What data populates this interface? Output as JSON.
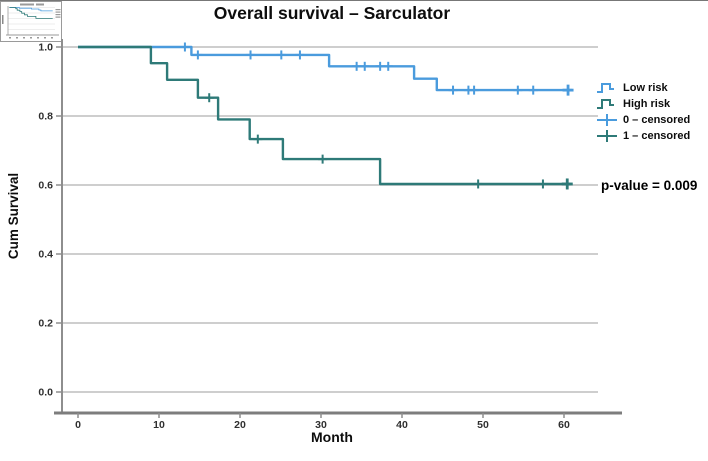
{
  "title": "Overall survival – Sarculator",
  "p_value_label": "p-value = 0.009",
  "axes": {
    "x_label": "Month",
    "y_label": "Cum Survival"
  },
  "legend": {
    "items": [
      {
        "label": "Low risk",
        "type": "step-line",
        "color": "#4a9bdd"
      },
      {
        "label": "High risk",
        "type": "step-line",
        "color": "#2e7a78"
      },
      {
        "label": "0 – censored",
        "type": "censor-plus",
        "color": "#4a9bdd"
      },
      {
        "label": "1 – censored",
        "type": "censor-plus",
        "color": "#2e7a78"
      }
    ]
  },
  "chart_data": {
    "type": "line",
    "subtype": "kaplan-meier-step",
    "title": "Overall survival – Sarculator",
    "xlabel": "Month",
    "ylabel": "Cum Survival",
    "xlim": [
      -2,
      64
    ],
    "ylim": [
      0,
      1.0
    ],
    "xticks": [
      0,
      10,
      20,
      30,
      40,
      50,
      60
    ],
    "yticks": [
      0.0,
      0.2,
      0.4,
      0.6,
      0.8,
      1.0
    ],
    "grid": "horizontal",
    "legend_position": "right",
    "annotation": "p-value = 0.009",
    "series": [
      {
        "name": "Low risk",
        "color": "#4a9bdd",
        "steps": [
          [
            0,
            1.0
          ],
          [
            14,
            0.977
          ],
          [
            31,
            0.944
          ],
          [
            41.5,
            0.908
          ],
          [
            44.3,
            0.875
          ],
          [
            61,
            0.875
          ]
        ],
        "censored": [
          [
            13.2,
            1.0
          ],
          [
            14.8,
            0.977
          ],
          [
            21.3,
            0.977
          ],
          [
            25.1,
            0.977
          ],
          [
            27.4,
            0.977
          ],
          [
            34.4,
            0.944
          ],
          [
            35.4,
            0.944
          ],
          [
            37.3,
            0.944
          ],
          [
            38.3,
            0.944
          ],
          [
            46.3,
            0.875
          ],
          [
            48.2,
            0.875
          ],
          [
            48.9,
            0.875
          ],
          [
            54.3,
            0.875
          ],
          [
            56.2,
            0.875
          ],
          [
            60.5,
            0.875
          ]
        ]
      },
      {
        "name": "High risk",
        "color": "#2e7a78",
        "steps": [
          [
            0,
            1.0
          ],
          [
            9,
            0.953
          ],
          [
            11,
            0.905
          ],
          [
            14.8,
            0.853
          ],
          [
            17.3,
            0.79
          ],
          [
            21.2,
            0.733
          ],
          [
            25.3,
            0.675
          ],
          [
            37.3,
            0.603
          ],
          [
            60.8,
            0.603
          ]
        ],
        "censored": [
          [
            16.2,
            0.853
          ],
          [
            22.2,
            0.733
          ],
          [
            30.2,
            0.675
          ],
          [
            49.4,
            0.603
          ],
          [
            57.4,
            0.603
          ],
          [
            60.4,
            0.603
          ]
        ]
      }
    ]
  }
}
